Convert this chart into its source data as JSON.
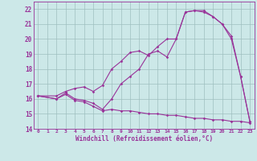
{
  "title": "",
  "xlabel": "Windchill (Refroidissement éolien,°C)",
  "ylabel": "",
  "bg_color": "#cce8e8",
  "line_color": "#993399",
  "grid_color": "#9fbfbf",
  "xlim": [
    -0.5,
    23.5
  ],
  "ylim": [
    14,
    22.5
  ],
  "yticks": [
    14,
    15,
    16,
    17,
    18,
    19,
    20,
    21,
    22
  ],
  "xticks": [
    0,
    1,
    2,
    3,
    4,
    5,
    6,
    7,
    8,
    9,
    10,
    11,
    12,
    13,
    14,
    15,
    16,
    17,
    18,
    19,
    20,
    21,
    22,
    23
  ],
  "curve1_x": [
    0,
    2,
    3,
    4,
    5,
    6,
    7,
    8,
    9,
    10,
    11,
    12,
    13,
    14,
    15,
    16,
    17,
    18,
    19,
    20,
    21,
    22,
    23
  ],
  "curve1_y": [
    16.2,
    16.2,
    16.5,
    16.7,
    16.8,
    16.5,
    16.9,
    18.0,
    18.5,
    19.1,
    19.2,
    18.9,
    19.5,
    20.0,
    20.0,
    21.8,
    21.9,
    21.9,
    21.5,
    21.0,
    20.0,
    17.5,
    14.5
  ],
  "curve2_x": [
    0,
    2,
    3,
    4,
    5,
    6,
    7,
    8,
    9,
    10,
    11,
    12,
    13,
    14,
    15,
    16,
    17,
    18,
    19,
    20,
    21,
    22,
    23
  ],
  "curve2_y": [
    16.2,
    16.0,
    16.4,
    16.0,
    15.9,
    15.7,
    15.3,
    16.0,
    17.0,
    17.5,
    18.0,
    19.0,
    19.2,
    18.8,
    20.0,
    21.8,
    21.9,
    21.8,
    21.5,
    21.0,
    20.2,
    17.5,
    14.5
  ],
  "curve3_x": [
    0,
    2,
    3,
    4,
    5,
    6,
    7,
    8,
    9,
    10,
    11,
    12,
    13,
    14,
    15,
    16,
    17,
    18,
    19,
    20,
    21,
    22,
    23
  ],
  "curve3_y": [
    16.2,
    16.0,
    16.3,
    15.9,
    15.8,
    15.5,
    15.2,
    15.3,
    15.2,
    15.2,
    15.1,
    15.0,
    15.0,
    14.9,
    14.9,
    14.8,
    14.7,
    14.7,
    14.6,
    14.6,
    14.5,
    14.5,
    14.4
  ]
}
